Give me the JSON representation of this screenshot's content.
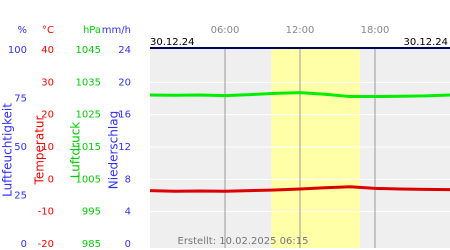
{
  "chart_data": {
    "type": "line",
    "date_left": "30.12.24",
    "date_right": "30.12.24",
    "footer": "Erstellt: 10.02.2025 06:15",
    "xlim": [
      0,
      24
    ],
    "xticks": [
      {
        "value": 6,
        "label": "06:00"
      },
      {
        "value": 12,
        "label": "12:00"
      },
      {
        "value": 18,
        "label": "18:00"
      }
    ],
    "highlight": [
      9.7,
      16.8
    ],
    "highlight_color": "#ffffa8",
    "background": "#efefef",
    "grid": true,
    "axes": [
      {
        "unit": "%",
        "title": "Luftfeuchtigkeit",
        "color": "#3030ff",
        "lim": [
          0,
          100
        ],
        "ticks": [
          0,
          25,
          50,
          75,
          100
        ]
      },
      {
        "unit": "°C",
        "title": "Temperatur",
        "color": "#ff0000",
        "lim": [
          -20,
          40
        ],
        "ticks": [
          -20,
          -10,
          0,
          10,
          20,
          30,
          40
        ]
      },
      {
        "unit": "hPa",
        "title": "Luftdruck",
        "color": "#00cc00",
        "lim": [
          985,
          1045
        ],
        "ticks": [
          985,
          995,
          1005,
          1015,
          1025,
          1035,
          1045
        ]
      },
      {
        "unit": "mm/h",
        "title": "Niederschlag",
        "color": "#3030ff",
        "lim": [
          0,
          24
        ],
        "ticks": [
          0,
          4,
          8,
          12,
          16,
          20,
          24
        ]
      }
    ],
    "x": [
      0,
      2,
      4,
      6,
      8,
      10,
      12,
      14,
      16,
      18,
      20,
      22,
      24
    ],
    "series": [
      {
        "axis": 2,
        "color": "#00ee00",
        "values": [
          1031.1,
          1031.0,
          1031.1,
          1030.9,
          1031.2,
          1031.6,
          1031.8,
          1031.3,
          1030.6,
          1030.6,
          1030.7,
          1030.8,
          1031.1
        ]
      },
      {
        "axis": 1,
        "color": "#dd0000",
        "values": [
          -3.5,
          -3.7,
          -3.6,
          -3.7,
          -3.5,
          -3.3,
          -3.0,
          -2.6,
          -2.3,
          -2.8,
          -3.0,
          -3.1,
          -3.2
        ]
      }
    ]
  }
}
